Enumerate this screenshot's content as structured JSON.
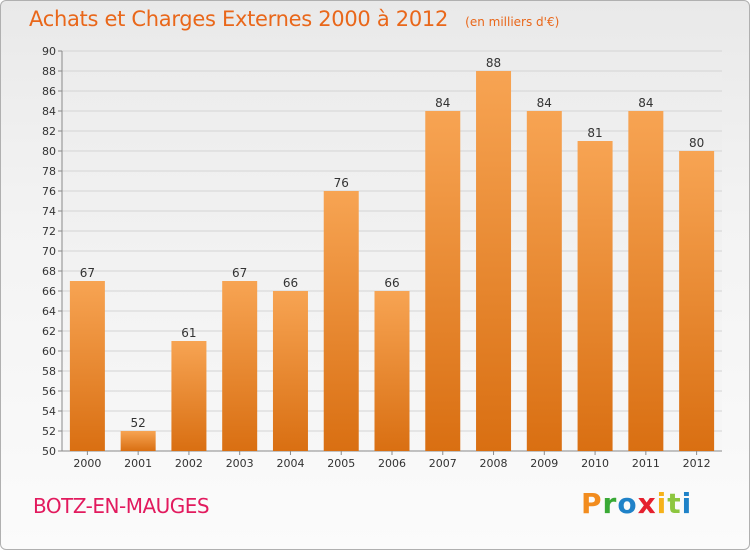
{
  "header": {
    "title": "Achats et Charges Externes 2000 à 2012",
    "unit_note": "(en milliers d'€)"
  },
  "footer": {
    "commune": "BOTZ-EN-MAUGES",
    "logo_text": "Proxiti",
    "logo_colors": [
      "#f28c1e",
      "#39a935",
      "#1f82c8",
      "#e5202e",
      "#f6b21a",
      "#8dc63f",
      "#1f82c8"
    ]
  },
  "colors": {
    "bar_top": "#f7a453",
    "bar_bottom": "#d96f12",
    "title": "#e9671a",
    "commune": "#e21a5e"
  },
  "chart_data": {
    "type": "bar",
    "title": "Achats et Charges Externes 2000 à 2012",
    "subtitle": "(en milliers d'€)",
    "xlabel": "",
    "ylabel": "",
    "categories": [
      "2000",
      "2001",
      "2002",
      "2003",
      "2004",
      "2005",
      "2006",
      "2007",
      "2008",
      "2009",
      "2010",
      "2011",
      "2012"
    ],
    "values": [
      67,
      52,
      61,
      67,
      66,
      76,
      66,
      84,
      88,
      84,
      81,
      84,
      80
    ],
    "ylim": [
      50,
      90
    ],
    "ytick_step": 2,
    "grid": true,
    "legend": "none"
  }
}
